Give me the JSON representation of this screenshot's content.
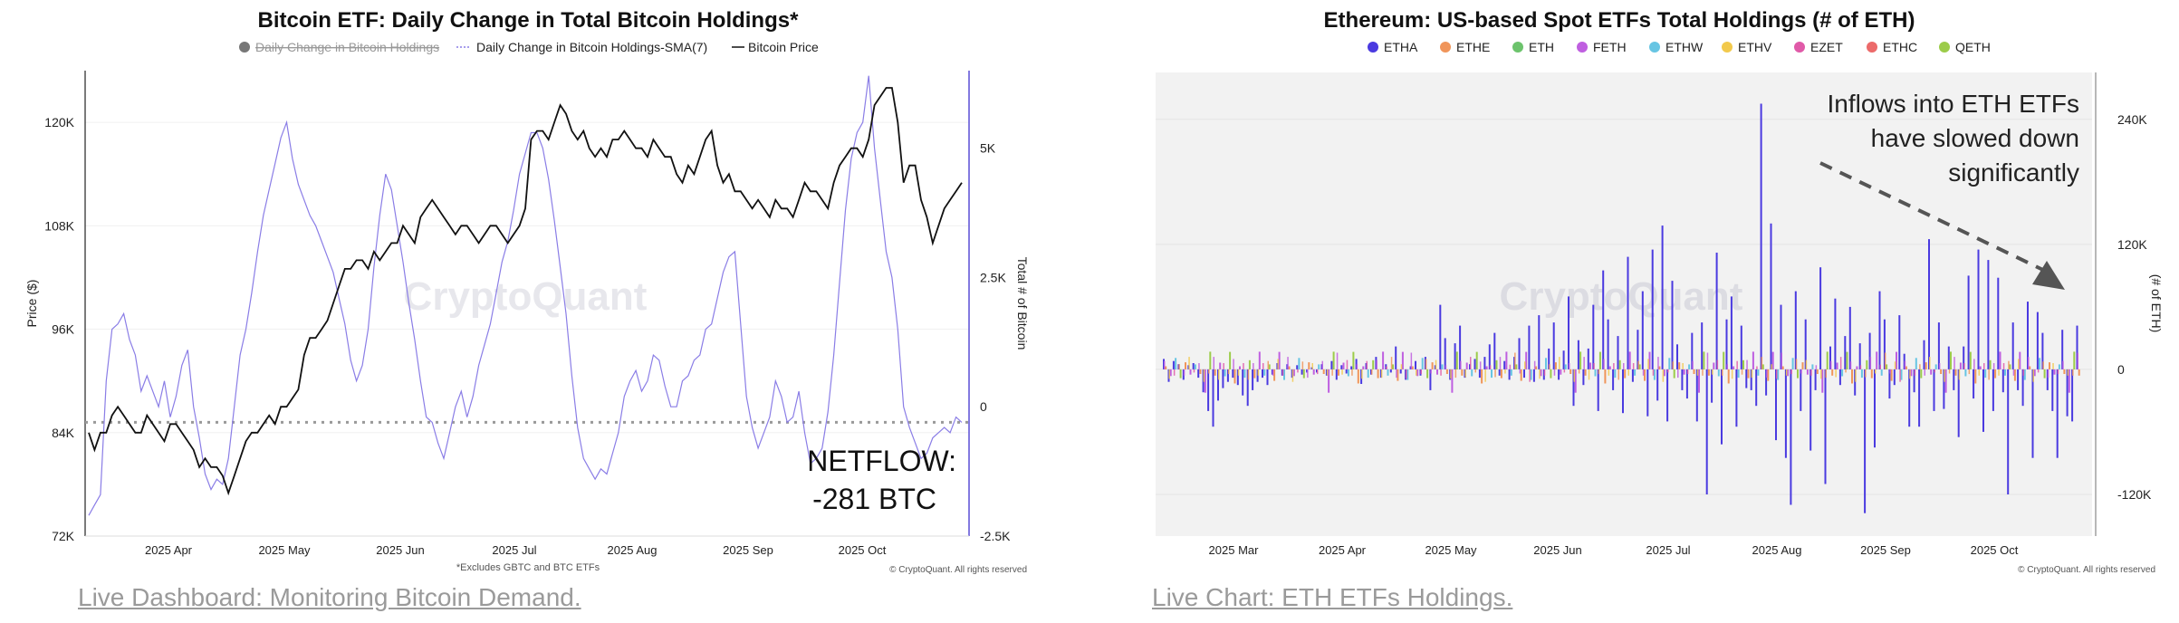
{
  "left_footer_link": "Live Dashboard: Monitoring Bitcoin Demand.",
  "right_footer_link": "Live Chart: ETH ETFs Holdings.",
  "chart_data": [
    {
      "type": "line",
      "title": "Bitcoin ETF: Daily Change in Total Bitcoin Holdings*",
      "legend": [
        {
          "label": "Daily Change in Bitcoin Holdings",
          "style": "dot",
          "hidden": true
        },
        {
          "label": "Daily Change in Bitcoin Holdings-SMA(7)",
          "style": "dotted-line"
        },
        {
          "label": "Bitcoin Price",
          "style": "solid-line"
        }
      ],
      "ylabel": "Price ($)",
      "y2label": "Total # of Bitcoin",
      "y_ticks": [
        "72K",
        "84K",
        "96K",
        "108K",
        "120K"
      ],
      "y2_ticks": [
        "-2.5K",
        "0",
        "2.5K",
        "5K"
      ],
      "x_ticks": [
        "2025 Apr",
        "2025 May",
        "2025 Jun",
        "2025 Jul",
        "2025 Aug",
        "2025 Sep",
        "2025 Oct"
      ],
      "ylim": [
        72,
        126
      ],
      "y2lim": [
        -2.5,
        6.5
      ],
      "baseline_y2": -0.3,
      "annotation_line1": "NETFLOW:",
      "annotation_line2": "-281 BTC",
      "watermark": "CryptoQuant",
      "footnote": "*Excludes GBTC and BTC ETFs",
      "credit": "© CryptoQuant. All rights reserved",
      "price": [
        84,
        82,
        84,
        84,
        86,
        87,
        86,
        85,
        84,
        84,
        86,
        85,
        84,
        83,
        85,
        85,
        84,
        83,
        82,
        80,
        81,
        80,
        80,
        79,
        77,
        79,
        81,
        83,
        84,
        84,
        85,
        86,
        85,
        87,
        87,
        88,
        89,
        93,
        95,
        95,
        96,
        97,
        99,
        101,
        103,
        103,
        104,
        104,
        103,
        105,
        104,
        105,
        106,
        106,
        108,
        107,
        106,
        109,
        110,
        111,
        110,
        109,
        108,
        107,
        108,
        108,
        107,
        106,
        107,
        108,
        108,
        107,
        106,
        107,
        108,
        110,
        118,
        119,
        119,
        118,
        120,
        122,
        121,
        119,
        118,
        119,
        117,
        116,
        117,
        116,
        118,
        118,
        119,
        118,
        117,
        117,
        116,
        118,
        117,
        116,
        116,
        114,
        113,
        115,
        114,
        116,
        118,
        119,
        115,
        113,
        114,
        112,
        112,
        111,
        110,
        111,
        110,
        109,
        111,
        110,
        110,
        109,
        111,
        113,
        112,
        112,
        111,
        110,
        113,
        115,
        116,
        117,
        117,
        116,
        118,
        122,
        123,
        124,
        124,
        120,
        113,
        115,
        115,
        111,
        109,
        106,
        108,
        110,
        111,
        112,
        113
      ],
      "sma": [
        -2.1,
        -1.9,
        -1.7,
        0.5,
        1.5,
        1.6,
        1.8,
        1.3,
        1.0,
        0.3,
        0.6,
        0.3,
        0.0,
        0.5,
        -0.2,
        0.2,
        0.8,
        1.1,
        0.0,
        -0.6,
        -1.3,
        -1.6,
        -1.4,
        -1.5,
        -1.0,
        0.0,
        1.0,
        1.5,
        2.2,
        3.0,
        3.7,
        4.2,
        4.7,
        5.2,
        5.5,
        4.8,
        4.3,
        4.0,
        3.7,
        3.5,
        3.2,
        2.9,
        2.6,
        2.1,
        1.6,
        0.9,
        0.5,
        0.8,
        1.5,
        2.7,
        3.7,
        4.5,
        4.2,
        3.5,
        2.8,
        2.0,
        1.3,
        0.5,
        -0.2,
        -0.3,
        -0.7,
        -1.0,
        -0.5,
        0.0,
        0.3,
        -0.2,
        0.2,
        0.8,
        1.2,
        1.6,
        2.2,
        2.8,
        3.2,
        3.8,
        4.5,
        4.9,
        5.3,
        5.3,
        5.0,
        4.4,
        3.6,
        2.7,
        1.8,
        0.6,
        -0.4,
        -1.0,
        -1.2,
        -1.4,
        -1.2,
        -1.3,
        -0.9,
        -0.5,
        0.2,
        0.5,
        0.7,
        0.3,
        0.5,
        1.0,
        0.9,
        0.4,
        0.0,
        0.0,
        0.5,
        0.6,
        0.9,
        1.0,
        1.5,
        1.6,
        2.1,
        2.6,
        2.9,
        3.0,
        1.6,
        0.2,
        -0.4,
        -0.8,
        -0.5,
        -0.2,
        0.5,
        0.2,
        -0.3,
        -0.2,
        0.3,
        -0.5,
        -1.1,
        -1.0,
        -0.8,
        -0.1,
        1.0,
        2.4,
        3.8,
        4.8,
        5.3,
        5.5,
        6.4,
        5.0,
        4.0,
        3.0,
        2.5,
        1.5,
        0.0,
        -0.4,
        -0.7,
        -1.0,
        -0.9,
        -0.6,
        -0.5,
        -0.4,
        -0.5,
        -0.2,
        -0.3
      ]
    },
    {
      "type": "bar",
      "title": "Ethereum: US-based Spot ETFs Total Holdings (# of ETH)",
      "series_names": [
        "ETHA",
        "ETHE",
        "ETH",
        "FETH",
        "ETHW",
        "ETHV",
        "EZET",
        "ETHC",
        "QETH"
      ],
      "colors": [
        "#4a3ae0",
        "#f0955a",
        "#6cc36c",
        "#bf5fe0",
        "#67c5e3",
        "#f2c94c",
        "#e05aa8",
        "#ec6a6a",
        "#9ccc4a"
      ],
      "ylabel": "(# of ETH)",
      "y_ticks": [
        "-120K",
        "0",
        "120K",
        "240K"
      ],
      "ylim": [
        -160,
        285
      ],
      "x_ticks": [
        "2025 Mar",
        "2025 Apr",
        "2025 May",
        "2025 Jun",
        "2025 Jul",
        "2025 Aug",
        "2025 Sep",
        "2025 Oct"
      ],
      "annotation_lines": [
        "Inflows into ETH ETFs",
        "have slowed down",
        "significantly"
      ],
      "watermark": "CryptoQuant",
      "credit": "© CryptoQuant. All rights reserved",
      "etha": [
        10,
        -12,
        8,
        5,
        -10,
        4,
        6,
        -8,
        -22,
        -40,
        -55,
        -30,
        -18,
        -12,
        -8,
        -15,
        -25,
        -35,
        -20,
        -12,
        -8,
        -15,
        -5,
        6,
        -6,
        5,
        -8,
        4,
        -5,
        -3,
        2,
        -3,
        5,
        -6,
        8,
        -10,
        4,
        -4,
        3,
        10,
        -14,
        6,
        -5,
        12,
        -8,
        5,
        -3,
        22,
        -4,
        -10,
        3,
        8,
        -6,
        12,
        -20,
        4,
        62,
        30,
        -10,
        25,
        42,
        -8,
        5,
        10,
        -8,
        12,
        24,
        35,
        -6,
        8,
        -10,
        12,
        30,
        -8,
        42,
        -12,
        52,
        -10,
        20,
        45,
        -10,
        18,
        70,
        -35,
        28,
        -15,
        20,
        62,
        -40,
        95,
        48,
        -20,
        32,
        -42,
        108,
        -12,
        38,
        75,
        -45,
        115,
        -30,
        138,
        -50,
        85,
        24,
        -20,
        -28,
        35,
        -50,
        45,
        -120,
        -32,
        112,
        -72,
        48,
        70,
        -55,
        42,
        -18,
        -20,
        -35,
        255,
        -25,
        140,
        -68,
        62,
        -85,
        -130,
        75,
        -40,
        48,
        -78,
        -20,
        98,
        -110,
        22,
        68,
        -15,
        32,
        60,
        -25,
        25,
        -138,
        35,
        -75,
        75,
        48,
        -28,
        -15,
        52,
        15,
        -55,
        -22,
        -55,
        28,
        125,
        -40,
        45,
        -38,
        22,
        -20,
        -65,
        22,
        90,
        -28,
        115,
        -60,
        105,
        -40,
        88,
        -22,
        -120,
        45,
        -20,
        -35,
        65,
        -85,
        55,
        35,
        -20,
        -40,
        -85,
        38,
        -45,
        -50,
        42
      ],
      "mix": [
        [
          1,
          3,
          8
        ],
        [
          3,
          -4,
          -6
        ],
        [
          4,
          5,
          -3
        ],
        [
          8,
          -3,
          5
        ],
        [
          1,
          2,
          -4
        ],
        [
          3,
          -5,
          6
        ],
        [
          4,
          3,
          -3
        ],
        [
          1,
          -2,
          4
        ],
        [
          3,
          -8,
          -6
        ],
        [
          8,
          5,
          -4
        ],
        [
          1,
          -6,
          8
        ],
        [
          3,
          4,
          -5
        ],
        [
          4,
          -3,
          6
        ],
        [
          8,
          6,
          -3
        ],
        [
          1,
          -4,
          5
        ],
        [
          3,
          3,
          -6
        ],
        [
          4,
          -5,
          4
        ],
        [
          8,
          4,
          -5
        ],
        [
          1,
          -3,
          6
        ],
        [
          3,
          5,
          -4
        ],
        [
          4,
          -6,
          3
        ],
        [
          8,
          3,
          8
        ],
        [
          1,
          -5,
          -4
        ],
        [
          3,
          6,
          5
        ],
        [
          4,
          -3,
          -6
        ]
      ]
    }
  ]
}
